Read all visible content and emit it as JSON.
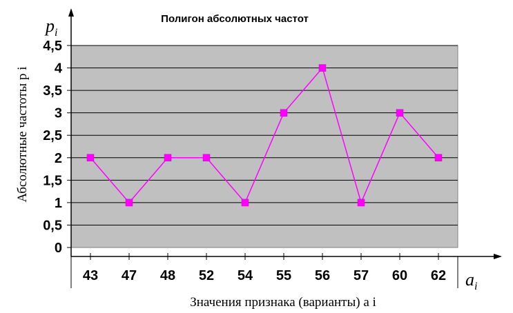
{
  "chart_data": {
    "type": "line",
    "title": "Полигон абсолютных частот",
    "xlabel": "Значения признака (варианты) a i",
    "ylabel": "Абсолютные частоты p i",
    "x_axis_symbol": {
      "letter": "a",
      "subscript": "i"
    },
    "y_axis_symbol": {
      "letter": "p",
      "subscript": "i"
    },
    "categories": [
      "43",
      "47",
      "48",
      "52",
      "54",
      "55",
      "56",
      "57",
      "60",
      "62"
    ],
    "series": [
      {
        "values": [
          2,
          1,
          2,
          2,
          1,
          3,
          4,
          1,
          3,
          2
        ]
      }
    ],
    "y_ticks": [
      "0",
      "0,5",
      "1",
      "1,5",
      "2",
      "2,5",
      "3",
      "3,5",
      "4",
      "4,5"
    ],
    "ylim": [
      0,
      4.5
    ],
    "grid": true,
    "colors": {
      "series": "#ff00ff",
      "marker": "#ff00ff",
      "plot_background": "#c0c0c0",
      "gridline": "#000000",
      "axis": "#000000"
    }
  }
}
